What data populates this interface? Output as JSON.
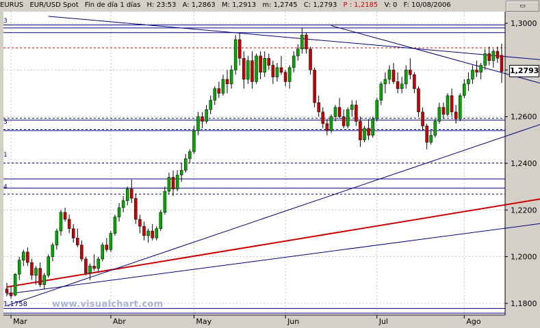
{
  "header": {
    "symbol": "EURUS",
    "instrument": "EUR/USD Spot",
    "period": "Fin de día 1 días",
    "high": "H: 23:53",
    "a": "A: 1,2863",
    "m": "M: 1,2913",
    "low": "m: 1,2745",
    "close": "C: 1,2793",
    "p": "P : 1,2185",
    "v": "V: 0",
    "date": "F: 10/08/2006"
  },
  "last_price_label": "1,2793",
  "watermark": "www.visualchart.com",
  "level_tags": {
    "l3a": "3",
    "l3b": "3",
    "l1": "1",
    "l4": "4",
    "l1758": "1,1758"
  },
  "chart_data": {
    "type": "candlestick",
    "x_labels": [
      "Mar",
      "Abr",
      "May",
      "Jun",
      "Jul",
      "Ago"
    ],
    "y_ticks": [
      "1,3000",
      "1,2800",
      "1,2600",
      "1,2400",
      "1,2200",
      "1,2000",
      "1,1800"
    ],
    "y_tick_values": [
      1.3,
      1.28,
      1.26,
      1.24,
      1.22,
      1.2,
      1.18
    ],
    "ylim": [
      1.175,
      1.305
    ],
    "candles": [
      [
        1.1862,
        1.1888,
        1.183,
        1.1845
      ],
      [
        1.1845,
        1.187,
        1.182,
        1.1832
      ],
      [
        1.1835,
        1.193,
        1.183,
        1.1925
      ],
      [
        1.1925,
        1.2,
        1.19,
        1.1985
      ],
      [
        1.1985,
        1.203,
        1.196,
        1.202
      ],
      [
        1.202,
        1.204,
        1.196,
        1.1975
      ],
      [
        1.1975,
        1.199,
        1.19,
        1.192
      ],
      [
        1.192,
        1.196,
        1.188,
        1.195
      ],
      [
        1.195,
        1.1975,
        1.187,
        1.188
      ],
      [
        1.188,
        1.193,
        1.186,
        1.192
      ],
      [
        1.192,
        1.201,
        1.191,
        1.2
      ],
      [
        1.2,
        1.206,
        1.198,
        1.205
      ],
      [
        1.205,
        1.212,
        1.203,
        1.211
      ],
      [
        1.211,
        1.22,
        1.209,
        1.219
      ],
      [
        1.219,
        1.221,
        1.215,
        1.216
      ],
      [
        1.216,
        1.218,
        1.21,
        1.212
      ],
      [
        1.212,
        1.214,
        1.206,
        1.208
      ],
      [
        1.208,
        1.212,
        1.204,
        1.205
      ],
      [
        1.205,
        1.207,
        1.198,
        1.199
      ],
      [
        1.199,
        1.2,
        1.192,
        1.193
      ],
      [
        1.193,
        1.197,
        1.19,
        1.196
      ],
      [
        1.196,
        1.201,
        1.194,
        1.195
      ],
      [
        1.195,
        1.2,
        1.193,
        1.199
      ],
      [
        1.199,
        1.206,
        1.198,
        1.205
      ],
      [
        1.205,
        1.208,
        1.202,
        1.203
      ],
      [
        1.203,
        1.211,
        1.202,
        1.21
      ],
      [
        1.21,
        1.218,
        1.209,
        1.217
      ],
      [
        1.217,
        1.223,
        1.215,
        1.221
      ],
      [
        1.221,
        1.226,
        1.219,
        1.224
      ],
      [
        1.224,
        1.23,
        1.222,
        1.229
      ],
      [
        1.229,
        1.233,
        1.223,
        1.225
      ],
      [
        1.225,
        1.227,
        1.214,
        1.216
      ],
      [
        1.216,
        1.218,
        1.21,
        1.213
      ],
      [
        1.213,
        1.215,
        1.207,
        1.209
      ],
      [
        1.209,
        1.212,
        1.206,
        1.211
      ],
      [
        1.211,
        1.214,
        1.207,
        1.208
      ],
      [
        1.208,
        1.213,
        1.207,
        1.212
      ],
      [
        1.212,
        1.22,
        1.211,
        1.219
      ],
      [
        1.219,
        1.23,
        1.218,
        1.228
      ],
      [
        1.228,
        1.236,
        1.227,
        1.234
      ],
      [
        1.234,
        1.237,
        1.226,
        1.229
      ],
      [
        1.229,
        1.237,
        1.228,
        1.235
      ],
      [
        1.235,
        1.24,
        1.232,
        1.237
      ],
      [
        1.237,
        1.244,
        1.236,
        1.242
      ],
      [
        1.242,
        1.246,
        1.24,
        1.245
      ],
      [
        1.245,
        1.256,
        1.244,
        1.254
      ],
      [
        1.254,
        1.262,
        1.252,
        1.26
      ],
      [
        1.26,
        1.262,
        1.255,
        1.258
      ],
      [
        1.258,
        1.265,
        1.257,
        1.263
      ],
      [
        1.263,
        1.269,
        1.261,
        1.267
      ],
      [
        1.267,
        1.273,
        1.265,
        1.272
      ],
      [
        1.272,
        1.275,
        1.268,
        1.27
      ],
      [
        1.27,
        1.278,
        1.269,
        1.276
      ],
      [
        1.276,
        1.28,
        1.27,
        1.274
      ],
      [
        1.274,
        1.282,
        1.272,
        1.28
      ],
      [
        1.28,
        1.295,
        1.278,
        1.293
      ],
      [
        1.293,
        1.296,
        1.282,
        1.285
      ],
      [
        1.285,
        1.288,
        1.272,
        1.276
      ],
      [
        1.276,
        1.286,
        1.274,
        1.284
      ],
      [
        1.284,
        1.288,
        1.272,
        1.275
      ],
      [
        1.275,
        1.287,
        1.274,
        1.286
      ],
      [
        1.286,
        1.288,
        1.276,
        1.279
      ],
      [
        1.279,
        1.288,
        1.277,
        1.285
      ],
      [
        1.285,
        1.287,
        1.28,
        1.282
      ],
      [
        1.282,
        1.284,
        1.274,
        1.277
      ],
      [
        1.277,
        1.283,
        1.275,
        1.281
      ],
      [
        1.281,
        1.286,
        1.278,
        1.279
      ],
      [
        1.279,
        1.28,
        1.273,
        1.275
      ],
      [
        1.275,
        1.282,
        1.272,
        1.281
      ],
      [
        1.281,
        1.288,
        1.279,
        1.286
      ],
      [
        1.286,
        1.291,
        1.284,
        1.289
      ],
      [
        1.289,
        1.298,
        1.287,
        1.295
      ],
      [
        1.295,
        1.296,
        1.287,
        1.289
      ],
      [
        1.289,
        1.29,
        1.278,
        1.28
      ],
      [
        1.28,
        1.281,
        1.264,
        1.266
      ],
      [
        1.266,
        1.269,
        1.26,
        1.262
      ],
      [
        1.262,
        1.264,
        1.255,
        1.257
      ],
      [
        1.257,
        1.259,
        1.252,
        1.254
      ],
      [
        1.254,
        1.261,
        1.253,
        1.26
      ],
      [
        1.26,
        1.265,
        1.258,
        1.264
      ],
      [
        1.264,
        1.268,
        1.259,
        1.26
      ],
      [
        1.26,
        1.263,
        1.255,
        1.256
      ],
      [
        1.256,
        1.264,
        1.255,
        1.263
      ],
      [
        1.263,
        1.267,
        1.26,
        1.265
      ],
      [
        1.265,
        1.267,
        1.256,
        1.258
      ],
      [
        1.258,
        1.26,
        1.247,
        1.25
      ],
      [
        1.25,
        1.256,
        1.249,
        1.255
      ],
      [
        1.255,
        1.259,
        1.25,
        1.252
      ],
      [
        1.252,
        1.26,
        1.251,
        1.259
      ],
      [
        1.259,
        1.268,
        1.258,
        1.267
      ],
      [
        1.267,
        1.275,
        1.265,
        1.274
      ],
      [
        1.274,
        1.279,
        1.27,
        1.276
      ],
      [
        1.276,
        1.282,
        1.274,
        1.28
      ],
      [
        1.28,
        1.283,
        1.274,
        1.275
      ],
      [
        1.275,
        1.279,
        1.27,
        1.272
      ],
      [
        1.272,
        1.277,
        1.27,
        1.274
      ],
      [
        1.274,
        1.282,
        1.272,
        1.28
      ],
      [
        1.28,
        1.285,
        1.276,
        1.278
      ],
      [
        1.278,
        1.279,
        1.27,
        1.272
      ],
      [
        1.272,
        1.273,
        1.26,
        1.262
      ],
      [
        1.262,
        1.264,
        1.254,
        1.256
      ],
      [
        1.256,
        1.257,
        1.246,
        1.249
      ],
      [
        1.249,
        1.254,
        1.248,
        1.252
      ],
      [
        1.252,
        1.259,
        1.251,
        1.258
      ],
      [
        1.258,
        1.266,
        1.257,
        1.264
      ],
      [
        1.264,
        1.266,
        1.259,
        1.261
      ],
      [
        1.261,
        1.27,
        1.26,
        1.269
      ],
      [
        1.269,
        1.272,
        1.26,
        1.262
      ],
      [
        1.262,
        1.265,
        1.257,
        1.259
      ],
      [
        1.259,
        1.27,
        1.258,
        1.269
      ],
      [
        1.269,
        1.276,
        1.268,
        1.274
      ],
      [
        1.274,
        1.279,
        1.271,
        1.276
      ],
      [
        1.276,
        1.282,
        1.274,
        1.28
      ],
      [
        1.28,
        1.284,
        1.277,
        1.279
      ],
      [
        1.279,
        1.283,
        1.276,
        1.282
      ],
      [
        1.282,
        1.289,
        1.28,
        1.287
      ],
      [
        1.287,
        1.29,
        1.282,
        1.284
      ],
      [
        1.284,
        1.289,
        1.281,
        1.288
      ],
      [
        1.288,
        1.29,
        1.283,
        1.285
      ],
      [
        1.2863,
        1.2913,
        1.2745,
        1.2793
      ]
    ],
    "horizontal_levels": [
      1.2993,
      1.298,
      1.296,
      1.2585,
      1.254,
      1.2333,
      1.2294,
      1.1758,
      1.1778
    ],
    "dashed_levels": [
      1.2895,
      1.2593,
      1.2545,
      1.2401,
      1.2268
    ],
    "trendlines": [
      {
        "color": "#cc0000",
        "from": [
          0,
          1.187
        ],
        "to": [
          130,
          1.2255
        ]
      },
      {
        "color": "#000080",
        "from": [
          0,
          1.184
        ],
        "to": [
          130,
          1.2148
        ]
      },
      {
        "color": "#000080",
        "from": [
          0,
          1.179
        ],
        "to": [
          130,
          1.2583
        ]
      },
      {
        "color": "#000080",
        "from": [
          10,
          1.303
        ],
        "to": [
          130,
          1.284
        ]
      },
      {
        "color": "#000080",
        "from": [
          78,
          1.299
        ],
        "to": [
          130,
          1.273
        ]
      }
    ]
  }
}
